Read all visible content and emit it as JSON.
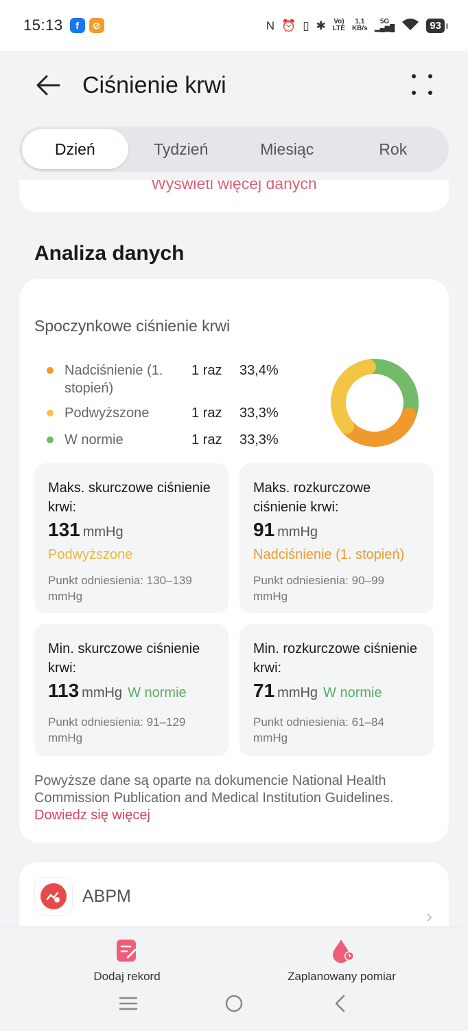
{
  "status_bar": {
    "time": "15:13",
    "net_speed_value": "1,1",
    "net_speed_unit": "KB/s",
    "volte_top": "Vo)",
    "volte_bottom": "LTE",
    "network": "5G",
    "battery": "93"
  },
  "header": {
    "title": "Ciśnienie krwi"
  },
  "tabs": [
    {
      "label": "Dzień",
      "active": true
    },
    {
      "label": "Tydzień",
      "active": false
    },
    {
      "label": "Miesiąc",
      "active": false
    },
    {
      "label": "Rok",
      "active": false
    }
  ],
  "prev_card": {
    "link": "Wyświetl więcej danych"
  },
  "section_title": "Analiza danych",
  "analysis": {
    "subtitle": "Spoczynkowe ciśnienie krwi",
    "legend": [
      {
        "label": "Nadciśnienie (1. stopień)",
        "count": "1 raz",
        "percent": "33,4%",
        "color": "#ef9a2a"
      },
      {
        "label": "Podwyższone",
        "count": "1 raz",
        "percent": "33,3%",
        "color": "#f4c443"
      },
      {
        "label": "W normie",
        "count": "1 raz",
        "percent": "33,3%",
        "color": "#72bb68"
      }
    ],
    "stats": [
      {
        "label": "Maks. skurczowe ciśnienie krwi:",
        "value": "131",
        "unit": "mmHg",
        "status": "Podwyższone",
        "reference": "Punkt odniesienia: 130–139 mmHg"
      },
      {
        "label": "Maks. rozkurczowe ciśnienie krwi:",
        "value": "91",
        "unit": "mmHg",
        "status": "Nadciśnienie (1. stopień)",
        "reference": "Punkt odniesienia: 90–99 mmHg"
      },
      {
        "label": "Min. skurczowe ciśnienie krwi:",
        "value": "113",
        "unit": "mmHg",
        "status": "W normie",
        "reference": "Punkt odniesienia: 91–129 mmHg"
      },
      {
        "label": "Min. rozkurczowe ciśnienie krwi:",
        "value": "71",
        "unit": "mmHg",
        "status": "W normie",
        "reference": "Punkt odniesienia: 61–84 mmHg"
      }
    ],
    "note": "Powyższe dane są oparte na dokumencie National Health Commission Publication and Medical Institution Guidelines.",
    "note_link": "Dowiedz się więcej"
  },
  "abpm": {
    "label": "ABPM"
  },
  "bottom_actions": {
    "add_record": "Dodaj rekord",
    "scheduled": "Zaplanowany pomiar"
  },
  "colors": {
    "accent": "#d4465e",
    "hypertension": "#ef9a2a",
    "elevated": "#f4c443",
    "normal": "#72bb68"
  }
}
